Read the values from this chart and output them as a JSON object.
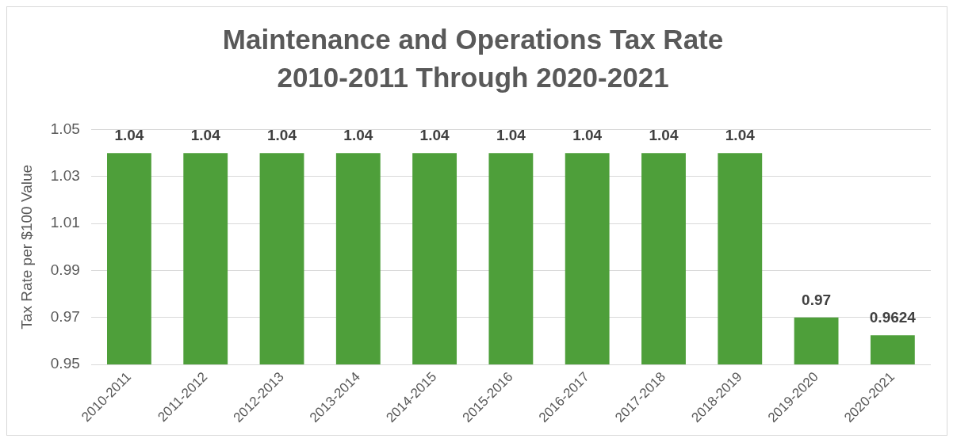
{
  "chart_data": {
    "type": "bar",
    "title": "Maintenance and Operations Tax Rate",
    "subtitle": "2010-2011 Through 2020-2021",
    "ylabel": "Tax Rate per $100 Value",
    "categories": [
      "2010-2011",
      "2011-2012",
      "2012-2013",
      "2013-2014",
      "2014-2015",
      "2015-2016",
      "2016-2017",
      "2017-2018",
      "2018-2019",
      "2019-2020",
      "2020-2021"
    ],
    "values": [
      1.04,
      1.04,
      1.04,
      1.04,
      1.04,
      1.04,
      1.04,
      1.04,
      1.04,
      0.97,
      0.9624
    ],
    "color": "#4e9f3a",
    "ylim": [
      0.95,
      1.05
    ],
    "yticks": [
      0.95,
      0.97,
      0.99,
      1.01,
      1.03,
      1.05
    ],
    "grid": "y",
    "data_labels": true,
    "legend": false
  }
}
